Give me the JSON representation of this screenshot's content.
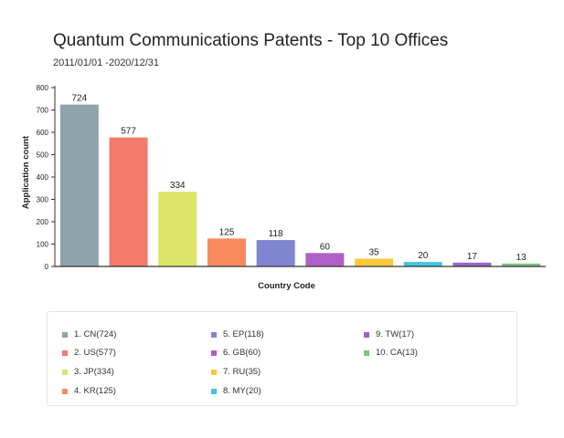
{
  "chart_data": {
    "type": "bar",
    "title": "Quantum Communications Patents - Top 10 Offices",
    "subtitle": "2011/01/01 -2020/12/31",
    "xlabel": "Country Code",
    "ylabel": "Application count",
    "ylim": [
      0,
      800
    ],
    "yticks": [
      "0",
      "100",
      "200",
      "300",
      "400",
      "500",
      "600",
      "700",
      "800"
    ],
    "grid": false,
    "legend_position": "bottom",
    "categories": [
      "CN",
      "US",
      "JP",
      "KR",
      "EP",
      "GB",
      "RU",
      "MY",
      "TW",
      "CA"
    ],
    "values": [
      724,
      577,
      334,
      125,
      118,
      60,
      35,
      20,
      17,
      13
    ],
    "colors": [
      "#8fa3ab",
      "#f47a6c",
      "#dce46a",
      "#f98a5e",
      "#7f86d0",
      "#b05fc9",
      "#fbc93c",
      "#40c5e0",
      "#9963c9",
      "#7cc37c"
    ],
    "legend": [
      "1. CN(724)",
      "2. US(577)",
      "3. JP(334)",
      "4. KR(125)",
      "5. EP(118)",
      "6. GB(60)",
      "7. RU(35)",
      "8. MY(20)",
      "9. TW(17)",
      "10. CA(13)"
    ]
  }
}
